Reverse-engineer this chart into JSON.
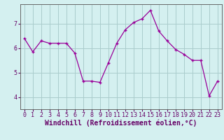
{
  "x": [
    0,
    1,
    2,
    3,
    4,
    5,
    6,
    7,
    8,
    9,
    10,
    11,
    12,
    13,
    14,
    15,
    16,
    17,
    18,
    19,
    20,
    21,
    22,
    23
  ],
  "y": [
    6.4,
    5.85,
    6.3,
    6.2,
    6.2,
    6.2,
    5.8,
    4.65,
    4.65,
    4.6,
    5.4,
    6.2,
    6.75,
    7.05,
    7.2,
    7.55,
    6.7,
    6.3,
    5.95,
    5.75,
    5.5,
    5.5,
    4.05,
    4.65
  ],
  "line_color": "#990099",
  "marker": "+",
  "marker_size": 3,
  "marker_linewidth": 1.0,
  "background_color": "#d4f0f0",
  "grid_color": "#aacccc",
  "xlabel": "Windchill (Refroidissement éolien,°C)",
  "xlabel_fontsize": 7,
  "tick_fontsize": 6,
  "ylim": [
    3.5,
    7.8
  ],
  "xlim": [
    -0.5,
    23.5
  ],
  "yticks": [
    4,
    5,
    6,
    7
  ],
  "xticks": [
    0,
    1,
    2,
    3,
    4,
    5,
    6,
    7,
    8,
    9,
    10,
    11,
    12,
    13,
    14,
    15,
    16,
    17,
    18,
    19,
    20,
    21,
    22,
    23
  ],
  "line_width": 0.9,
  "spine_color": "#666666",
  "text_color": "#660066"
}
